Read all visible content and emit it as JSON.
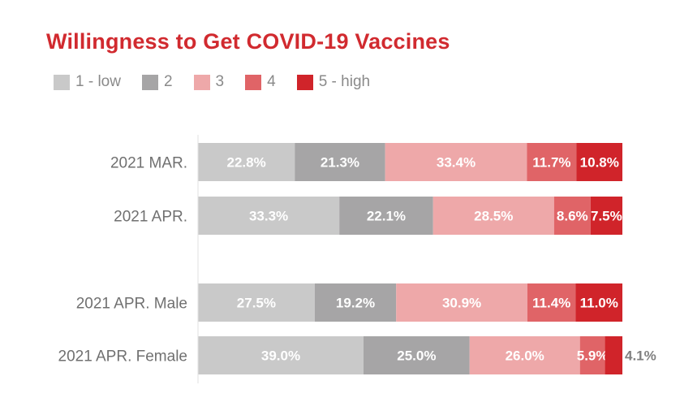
{
  "chart_data": {
    "type": "bar",
    "orientation": "horizontal",
    "stacked": "100%",
    "title": "Willingness to Get COVID-19 Vaccines",
    "legend_position": "top-left",
    "categories": [
      "2021 MAR.",
      "2021 APR.",
      "2021 APR. Male",
      "2021 APR. Female"
    ],
    "series": [
      {
        "name": "1 - low",
        "color": "#c9c9c9",
        "values": [
          22.8,
          33.3,
          27.5,
          39.0
        ]
      },
      {
        "name": "2",
        "color": "#a6a5a6",
        "values": [
          21.3,
          22.1,
          19.2,
          25.0
        ]
      },
      {
        "name": "3",
        "color": "#eea8a9",
        "values": [
          33.4,
          28.5,
          30.9,
          26.0
        ]
      },
      {
        "name": "4",
        "color": "#e06467",
        "values": [
          11.7,
          8.6,
          11.4,
          5.9
        ]
      },
      {
        "name": "5 - high",
        "color": "#d0242a",
        "values": [
          10.8,
          7.5,
          11.0,
          4.1
        ]
      }
    ],
    "data_labels": [
      [
        "22.8%",
        "21.3%",
        "33.4%",
        "11.7%",
        "10.8%"
      ],
      [
        "33.3%",
        "22.1%",
        "28.5%",
        "8.6%",
        "7.5%"
      ],
      [
        "27.5%",
        "19.2%",
        "30.9%",
        "11.4%",
        "11.0%"
      ],
      [
        "39.0%",
        "25.0%",
        "26.0%",
        "5.9%",
        "4.1%"
      ]
    ],
    "grid": false,
    "xlim": [
      0,
      100
    ]
  }
}
